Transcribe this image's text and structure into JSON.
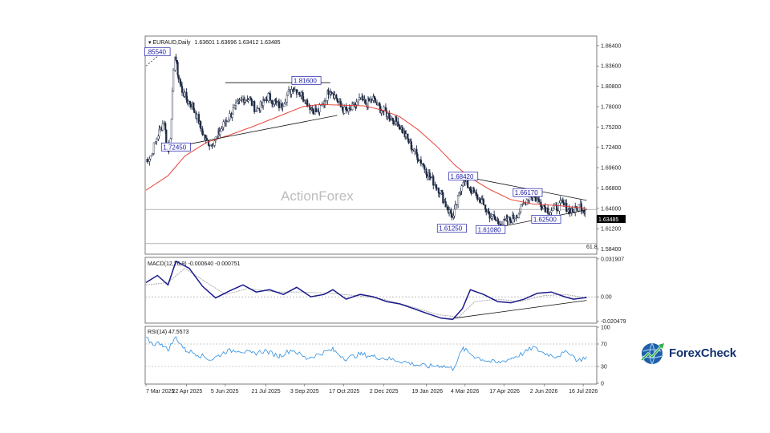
{
  "header": {
    "symbol": "EURAUD,Daily",
    "ohlc": "1.63601 1.63696 1.63412 1.63485"
  },
  "watermark": "ActionForex",
  "brand": {
    "name": "ForexCheck",
    "icon": "globe-chart-icon",
    "color": "#12306e"
  },
  "price_panel": {
    "y_ticks": [
      "1.86400",
      "1.83600",
      "1.80800",
      "1.78000",
      "1.75200",
      "1.72400",
      "1.69600",
      "1.66800",
      "1.64000",
      "1.61200",
      "1.58400"
    ],
    "current_price": "1.63485",
    "fib_label": "61.8",
    "level_labels": [
      {
        "text": ".85540",
        "date": "2025-03-20"
      },
      {
        "text": "1.81600",
        "date": "2025-09-05"
      },
      {
        "text": "1.72450",
        "date": "2025-04-10"
      },
      {
        "text": "1.68420",
        "date": "2026-03-02"
      },
      {
        "text": "1.66170",
        "date": "2026-05-14"
      },
      {
        "text": "1.62500",
        "date": "2026-06-04"
      },
      {
        "text": "1.61250",
        "date": "2026-02-17"
      },
      {
        "text": "1.61080",
        "date": "2026-04-02"
      }
    ]
  },
  "macd_panel": {
    "label": "MACD(12,26,9) -0.000640 -0.000751",
    "y_ticks": [
      "0.031907",
      "0.00",
      "-0.020479"
    ]
  },
  "rsi_panel": {
    "label": "RSI(14) 47.5573",
    "y_ticks": [
      "100",
      "70",
      "30",
      "0"
    ]
  },
  "x_ticks": [
    "7 Mar 2025",
    "22 Apr 2025",
    "5 Jun 2025",
    "21 Jul 2025",
    "3 Sep 2025",
    "17 Oct 2025",
    "2 Dec 2025",
    "19 Jan 2026",
    "4 Mar 2026",
    "17 Apr 2026",
    "2 Jun 2026",
    "16 Jul 2026"
  ],
  "colors": {
    "candles": "#1f2a44",
    "moving_average": "#e8342a",
    "macd_line": "#1a1a8c",
    "macd_signal": "#9a9a9a",
    "rsi_line": "#2f8fe0",
    "levels": "#1a1aa6"
  },
  "chart_data": [
    {
      "type": "line",
      "panel": "price",
      "title": "EURAUD,Daily",
      "y_range": [
        1.578,
        1.876
      ],
      "x_range": [
        "2025-03-07",
        "2026-07-25"
      ],
      "series": [
        {
          "role": "close",
          "points": [
            [
              "2025-03-07",
              1.705
            ],
            [
              "2025-03-14",
              1.715
            ],
            [
              "2025-03-21",
              1.742
            ],
            [
              "2025-03-28",
              1.76
            ],
            [
              "2025-04-01",
              1.718
            ],
            [
              "2025-04-04",
              1.74
            ],
            [
              "2025-04-09",
              1.853
            ],
            [
              "2025-04-15",
              1.81
            ],
            [
              "2025-04-22",
              1.79
            ],
            [
              "2025-04-29",
              1.782
            ],
            [
              "2025-05-06",
              1.76
            ],
            [
              "2025-05-13",
              1.735
            ],
            [
              "2025-05-20",
              1.728
            ],
            [
              "2025-05-27",
              1.738
            ],
            [
              "2025-06-05",
              1.758
            ],
            [
              "2025-06-12",
              1.77
            ],
            [
              "2025-06-19",
              1.782
            ],
            [
              "2025-06-26",
              1.792
            ],
            [
              "2025-07-03",
              1.79
            ],
            [
              "2025-07-10",
              1.776
            ],
            [
              "2025-07-17",
              1.782
            ],
            [
              "2025-07-24",
              1.795
            ],
            [
              "2025-07-31",
              1.786
            ],
            [
              "2025-08-07",
              1.78
            ],
            [
              "2025-08-14",
              1.795
            ],
            [
              "2025-08-21",
              1.806
            ],
            [
              "2025-08-28",
              1.8
            ],
            [
              "2025-09-04",
              1.79
            ],
            [
              "2025-09-11",
              1.778
            ],
            [
              "2025-09-18",
              1.772
            ],
            [
              "2025-09-25",
              1.785
            ],
            [
              "2025-10-02",
              1.806
            ],
            [
              "2025-10-09",
              1.792
            ],
            [
              "2025-10-16",
              1.776
            ],
            [
              "2025-10-23",
              1.773
            ],
            [
              "2025-10-30",
              1.781
            ],
            [
              "2025-11-06",
              1.789
            ],
            [
              "2025-11-13",
              1.784
            ],
            [
              "2025-11-20",
              1.791
            ],
            [
              "2025-11-27",
              1.778
            ],
            [
              "2025-12-04",
              1.772
            ],
            [
              "2025-12-11",
              1.764
            ],
            [
              "2025-12-18",
              1.758
            ],
            [
              "2025-12-25",
              1.744
            ],
            [
              "2026-01-01",
              1.728
            ],
            [
              "2026-01-08",
              1.714
            ],
            [
              "2026-01-15",
              1.702
            ],
            [
              "2026-01-22",
              1.686
            ],
            [
              "2026-01-29",
              1.674
            ],
            [
              "2026-02-05",
              1.662
            ],
            [
              "2026-02-12",
              1.64
            ],
            [
              "2026-02-19",
              1.628
            ],
            [
              "2026-02-24",
              1.652
            ],
            [
              "2026-03-02",
              1.68
            ],
            [
              "2026-03-09",
              1.669
            ],
            [
              "2026-03-16",
              1.658
            ],
            [
              "2026-03-23",
              1.65
            ],
            [
              "2026-03-30",
              1.634
            ],
            [
              "2026-04-06",
              1.626
            ],
            [
              "2026-04-13",
              1.618
            ],
            [
              "2026-04-20",
              1.621
            ],
            [
              "2026-04-27",
              1.626
            ],
            [
              "2026-05-04",
              1.634
            ],
            [
              "2026-05-11",
              1.648
            ],
            [
              "2026-05-18",
              1.659
            ],
            [
              "2026-05-25",
              1.652
            ],
            [
              "2026-06-01",
              1.644
            ],
            [
              "2026-06-08",
              1.636
            ],
            [
              "2026-06-15",
              1.64
            ],
            [
              "2026-06-22",
              1.646
            ],
            [
              "2026-06-29",
              1.64
            ],
            [
              "2026-07-06",
              1.636
            ],
            [
              "2026-07-13",
              1.644
            ],
            [
              "2026-07-20",
              1.634
            ]
          ]
        },
        {
          "role": "moving_average",
          "points": [
            [
              "2025-03-07",
              1.665
            ],
            [
              "2025-04-01",
              1.685
            ],
            [
              "2025-04-20",
              1.712
            ],
            [
              "2025-05-15",
              1.731
            ],
            [
              "2025-06-10",
              1.741
            ],
            [
              "2025-07-05",
              1.752
            ],
            [
              "2025-08-01",
              1.765
            ],
            [
              "2025-09-01",
              1.78
            ],
            [
              "2025-09-20",
              1.783
            ],
            [
              "2025-10-15",
              1.782
            ],
            [
              "2025-11-10",
              1.781
            ],
            [
              "2025-12-01",
              1.775
            ],
            [
              "2025-12-20",
              1.766
            ],
            [
              "2026-01-10",
              1.748
            ],
            [
              "2026-02-01",
              1.724
            ],
            [
              "2026-02-20",
              1.7
            ],
            [
              "2026-03-10",
              1.682
            ],
            [
              "2026-04-01",
              1.666
            ],
            [
              "2026-04-25",
              1.652
            ],
            [
              "2026-05-20",
              1.646
            ],
            [
              "2026-06-15",
              1.644
            ],
            [
              "2026-07-20",
              1.64
            ]
          ]
        }
      ],
      "trendlines": [
        {
          "name": "upper-2025",
          "from": [
            "2025-06-05",
            1.813
          ],
          "to": [
            "2025-10-02",
            1.813
          ]
        },
        {
          "name": "lower-2025",
          "from": [
            "2025-04-10",
            1.725
          ],
          "to": [
            "2025-10-10",
            1.768
          ]
        },
        {
          "name": "upper-2026",
          "from": [
            "2026-03-02",
            1.684
          ],
          "to": [
            "2026-07-20",
            1.651
          ]
        },
        {
          "name": "lower-2026",
          "from": [
            "2026-04-02",
            1.612
          ],
          "to": [
            "2026-07-20",
            1.638
          ]
        }
      ],
      "horizontal_levels": [
        1.6385,
        1.5915
      ]
    },
    {
      "type": "line",
      "panel": "macd",
      "title": "MACD(12,26,9)",
      "y_range": [
        -0.0215,
        0.0325
      ],
      "series": [
        {
          "role": "macd",
          "points": [
            [
              "2025-03-07",
              0.012
            ],
            [
              "2025-03-20",
              0.018
            ],
            [
              "2025-04-01",
              0.01
            ],
            [
              "2025-04-10",
              0.03
            ],
            [
              "2025-04-25",
              0.024
            ],
            [
              "2025-05-10",
              0.009
            ],
            [
              "2025-05-25",
              -0.001
            ],
            [
              "2025-06-10",
              0.005
            ],
            [
              "2025-06-25",
              0.01
            ],
            [
              "2025-07-10",
              0.004
            ],
            [
              "2025-07-25",
              0.006
            ],
            [
              "2025-08-10",
              0.002
            ],
            [
              "2025-08-25",
              0.008
            ],
            [
              "2025-09-10",
              0.0
            ],
            [
              "2025-09-25",
              0.002
            ],
            [
              "2025-10-05",
              0.006
            ],
            [
              "2025-10-20",
              -0.002
            ],
            [
              "2025-11-05",
              0.002
            ],
            [
              "2025-11-20",
              0.0
            ],
            [
              "2025-12-05",
              -0.004
            ],
            [
              "2025-12-20",
              -0.006
            ],
            [
              "2026-01-05",
              -0.01
            ],
            [
              "2026-01-20",
              -0.014
            ],
            [
              "2026-02-05",
              -0.018
            ],
            [
              "2026-02-18",
              -0.019
            ],
            [
              "2026-03-01",
              -0.01
            ],
            [
              "2026-03-10",
              0.006
            ],
            [
              "2026-03-25",
              0.002
            ],
            [
              "2026-04-10",
              -0.004
            ],
            [
              "2026-04-25",
              -0.005
            ],
            [
              "2026-05-10",
              -0.002
            ],
            [
              "2026-05-25",
              0.003
            ],
            [
              "2026-06-10",
              0.004
            ],
            [
              "2026-06-25",
              0.0
            ],
            [
              "2026-07-05",
              -0.002
            ],
            [
              "2026-07-20",
              -0.0006
            ]
          ]
        },
        {
          "role": "signal",
          "points": [
            [
              "2025-03-07",
              0.01
            ],
            [
              "2025-04-01",
              0.012
            ],
            [
              "2025-04-20",
              0.024
            ],
            [
              "2025-05-15",
              0.012
            ],
            [
              "2025-06-05",
              0.002
            ],
            [
              "2025-07-01",
              0.007
            ],
            [
              "2025-08-01",
              0.004
            ],
            [
              "2025-09-01",
              0.004
            ],
            [
              "2025-10-01",
              0.003
            ],
            [
              "2025-11-01",
              0.001
            ],
            [
              "2025-12-01",
              -0.002
            ],
            [
              "2026-01-01",
              -0.008
            ],
            [
              "2026-02-01",
              -0.015
            ],
            [
              "2026-02-25",
              -0.017
            ],
            [
              "2026-03-15",
              -0.004
            ],
            [
              "2026-04-10",
              -0.002
            ],
            [
              "2026-05-05",
              -0.004
            ],
            [
              "2026-06-01",
              0.001
            ],
            [
              "2026-06-25",
              0.002
            ],
            [
              "2026-07-20",
              -0.0008
            ]
          ]
        }
      ],
      "trendlines": [
        {
          "name": "macd-support",
          "from": [
            "2026-02-20",
            -0.018
          ],
          "to": [
            "2026-07-20",
            -0.003
          ]
        }
      ]
    },
    {
      "type": "line",
      "panel": "rsi",
      "title": "RSI(14)",
      "y_range": [
        0,
        100
      ],
      "levels": [
        70,
        30
      ],
      "series": [
        {
          "role": "rsi",
          "points": [
            [
              "2025-03-07",
              80
            ],
            [
              "2025-03-15",
              70
            ],
            [
              "2025-03-25",
              72
            ],
            [
              "2025-04-01",
              58
            ],
            [
              "2025-04-10",
              82
            ],
            [
              "2025-04-20",
              60
            ],
            [
              "2025-05-05",
              52
            ],
            [
              "2025-05-20",
              42
            ],
            [
              "2025-06-05",
              56
            ],
            [
              "2025-06-20",
              60
            ],
            [
              "2025-07-05",
              52
            ],
            [
              "2025-07-20",
              58
            ],
            [
              "2025-08-05",
              48
            ],
            [
              "2025-08-20",
              60
            ],
            [
              "2025-09-05",
              44
            ],
            [
              "2025-09-20",
              52
            ],
            [
              "2025-10-05",
              60
            ],
            [
              "2025-10-20",
              44
            ],
            [
              "2025-11-05",
              52
            ],
            [
              "2025-11-20",
              48
            ],
            [
              "2025-12-05",
              44
            ],
            [
              "2025-12-20",
              40
            ],
            [
              "2026-01-05",
              34
            ],
            [
              "2026-01-20",
              30
            ],
            [
              "2026-02-05",
              32
            ],
            [
              "2026-02-18",
              26
            ],
            [
              "2026-03-02",
              62
            ],
            [
              "2026-03-15",
              48
            ],
            [
              "2026-03-30",
              40
            ],
            [
              "2026-04-10",
              36
            ],
            [
              "2026-04-25",
              44
            ],
            [
              "2026-05-10",
              54
            ],
            [
              "2026-05-20",
              64
            ],
            [
              "2026-06-01",
              54
            ],
            [
              "2026-06-15",
              48
            ],
            [
              "2026-06-30",
              56
            ],
            [
              "2026-07-10",
              40
            ],
            [
              "2026-07-20",
              47.6
            ]
          ]
        }
      ]
    }
  ]
}
